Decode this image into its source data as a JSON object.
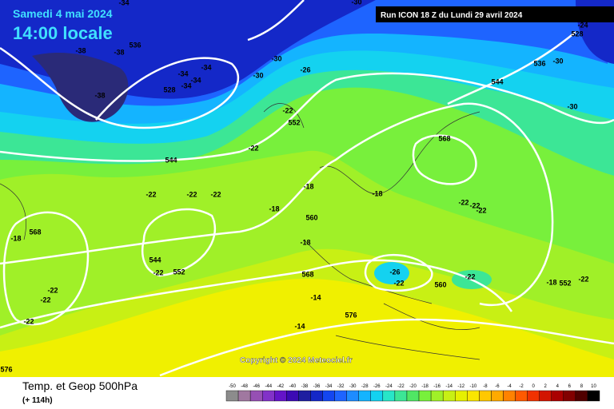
{
  "header": {
    "date": "Samedi 4 mai 2024",
    "time": "14:00 locale",
    "run": "Run ICON 18 Z du Lundi 29 avril 2024"
  },
  "map": {
    "labels": [
      -34,
      -30,
      -38,
      -38,
      536,
      -34,
      -34,
      528,
      -34,
      -34,
      -30,
      -30,
      -26,
      -38,
      -22,
      552,
      544,
      536,
      -30,
      -24,
      528,
      -30,
      -22,
      544,
      568,
      -22,
      -22,
      -22,
      -18,
      -18,
      -18,
      560,
      -22,
      -22,
      -22,
      -18,
      568,
      -18,
      544,
      -22,
      552,
      568,
      -26,
      -22,
      560,
      -22,
      -18,
      552,
      -22,
      -22,
      -22,
      -14,
      576,
      -22,
      -14,
      576
    ],
    "copyright": "Copyright © 2024 Meteociel.fr"
  },
  "footer": {
    "title": "Temp. et Geop 500hPa",
    "lead": "(+ 114h)"
  },
  "legend": {
    "values": [
      -50,
      -48,
      -46,
      -44,
      -42,
      -40,
      -38,
      -36,
      -34,
      -32,
      -30,
      -28,
      -26,
      -24,
      -22,
      -20,
      -18,
      -16,
      -14,
      -12,
      -10,
      -8,
      -6,
      -4,
      -2,
      0,
      2,
      4,
      6,
      8,
      10
    ],
    "colors": [
      "#8c8c8c",
      "#a078a0",
      "#9650b4",
      "#8232c8",
      "#6414c8",
      "#3c0ab4",
      "#1e1ea0",
      "#1428c8",
      "#1446f0",
      "#1e64ff",
      "#1e8cff",
      "#14b4ff",
      "#14d2f0",
      "#28e6c8",
      "#3ce696",
      "#50e664",
      "#78f03c",
      "#a0f028",
      "#c8f014",
      "#e6f000",
      "#fae600",
      "#ffc800",
      "#ffaa00",
      "#ff8200",
      "#ff5a00",
      "#f03200",
      "#d21400",
      "#aa0000",
      "#820000",
      "#500000",
      "#000000"
    ]
  }
}
